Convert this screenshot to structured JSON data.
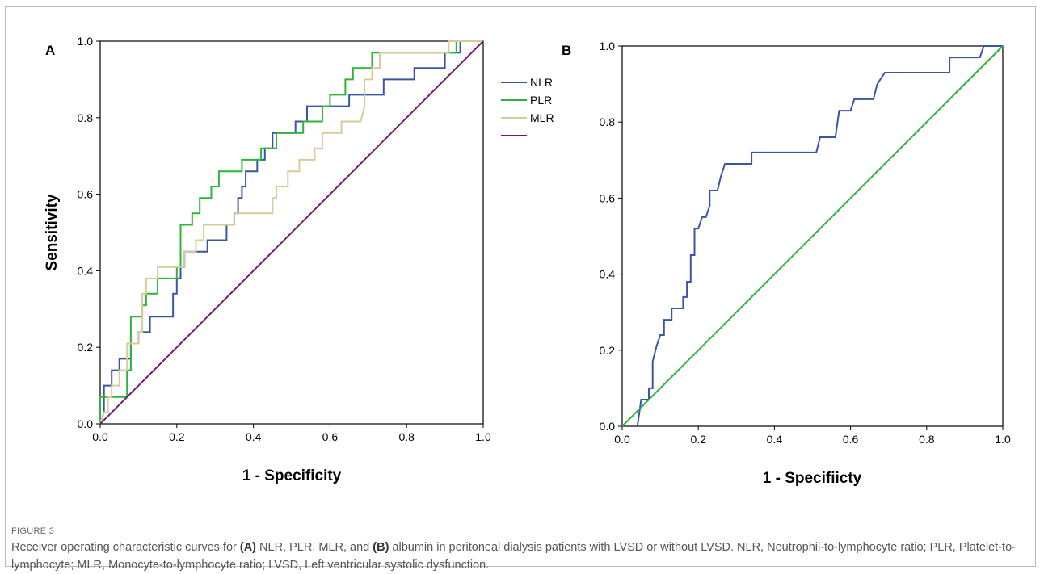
{
  "figure": {
    "label": "FIGURE 3",
    "caption": {
      "pre_a": "Receiver operating characteristic curves for ",
      "ref_a": "(A)",
      "mid": " NLR, PLR, MLR, and ",
      "ref_b": "(B)",
      "post": " albumin in peritoneal dialysis patients with LVSD or without LVSD. NLR, Neutrophil-to-lymphocyte ratio; PLR, Platelet-to-lymphocyte; MLR, Monocyte-to-lymphocyte ratio; LVSD, Left ventricular systolic dysfunction."
    }
  },
  "chart_data": [
    {
      "panel": "A",
      "type": "line",
      "xlabel": "1 - Specificity",
      "ylabel": "Sensitivity",
      "xlim": [
        0,
        1
      ],
      "ylim": [
        0,
        1
      ],
      "x_ticks": [
        "0.0",
        "0.2",
        "0.4",
        "0.6",
        "0.8",
        "1.0"
      ],
      "y_ticks": [
        "0.0",
        "0.2",
        "0.4",
        "0.6",
        "0.8",
        "1.0"
      ],
      "legend_position": "right",
      "series": [
        {
          "name": "NLR",
          "color": "#3b55a6",
          "points": [
            [
              0,
              0
            ],
            [
              0.01,
              0.03
            ],
            [
              0.01,
              0.1
            ],
            [
              0.03,
              0.1
            ],
            [
              0.03,
              0.14
            ],
            [
              0.05,
              0.14
            ],
            [
              0.05,
              0.17
            ],
            [
              0.08,
              0.17
            ],
            [
              0.08,
              0.21
            ],
            [
              0.1,
              0.21
            ],
            [
              0.1,
              0.24
            ],
            [
              0.13,
              0.24
            ],
            [
              0.13,
              0.28
            ],
            [
              0.19,
              0.28
            ],
            [
              0.19,
              0.34
            ],
            [
              0.2,
              0.34
            ],
            [
              0.2,
              0.38
            ],
            [
              0.21,
              0.38
            ],
            [
              0.21,
              0.41
            ],
            [
              0.22,
              0.41
            ],
            [
              0.22,
              0.45
            ],
            [
              0.28,
              0.45
            ],
            [
              0.28,
              0.48
            ],
            [
              0.33,
              0.48
            ],
            [
              0.33,
              0.52
            ],
            [
              0.35,
              0.52
            ],
            [
              0.35,
              0.55
            ],
            [
              0.36,
              0.55
            ],
            [
              0.36,
              0.59
            ],
            [
              0.37,
              0.59
            ],
            [
              0.37,
              0.62
            ],
            [
              0.38,
              0.62
            ],
            [
              0.38,
              0.66
            ],
            [
              0.41,
              0.66
            ],
            [
              0.41,
              0.69
            ],
            [
              0.43,
              0.69
            ],
            [
              0.43,
              0.72
            ],
            [
              0.45,
              0.72
            ],
            [
              0.45,
              0.76
            ],
            [
              0.51,
              0.76
            ],
            [
              0.51,
              0.79
            ],
            [
              0.54,
              0.79
            ],
            [
              0.54,
              0.83
            ],
            [
              0.65,
              0.83
            ],
            [
              0.65,
              0.86
            ],
            [
              0.74,
              0.86
            ],
            [
              0.74,
              0.9
            ],
            [
              0.82,
              0.9
            ],
            [
              0.82,
              0.93
            ],
            [
              0.9,
              0.93
            ],
            [
              0.9,
              0.97
            ],
            [
              0.94,
              0.97
            ],
            [
              0.94,
              1.0
            ],
            [
              1.0,
              1.0
            ]
          ]
        },
        {
          "name": "PLR",
          "color": "#2db43a",
          "points": [
            [
              0,
              0
            ],
            [
              0,
              0.07
            ],
            [
              0.07,
              0.07
            ],
            [
              0.07,
              0.14
            ],
            [
              0.08,
              0.14
            ],
            [
              0.08,
              0.28
            ],
            [
              0.11,
              0.28
            ],
            [
              0.11,
              0.31
            ],
            [
              0.12,
              0.31
            ],
            [
              0.12,
              0.34
            ],
            [
              0.15,
              0.34
            ],
            [
              0.15,
              0.38
            ],
            [
              0.2,
              0.38
            ],
            [
              0.2,
              0.41
            ],
            [
              0.21,
              0.41
            ],
            [
              0.21,
              0.52
            ],
            [
              0.24,
              0.52
            ],
            [
              0.24,
              0.55
            ],
            [
              0.26,
              0.55
            ],
            [
              0.26,
              0.59
            ],
            [
              0.29,
              0.59
            ],
            [
              0.29,
              0.62
            ],
            [
              0.31,
              0.62
            ],
            [
              0.31,
              0.66
            ],
            [
              0.37,
              0.66
            ],
            [
              0.37,
              0.69
            ],
            [
              0.42,
              0.69
            ],
            [
              0.42,
              0.72
            ],
            [
              0.46,
              0.72
            ],
            [
              0.46,
              0.76
            ],
            [
              0.53,
              0.76
            ],
            [
              0.53,
              0.79
            ],
            [
              0.58,
              0.79
            ],
            [
              0.58,
              0.83
            ],
            [
              0.6,
              0.83
            ],
            [
              0.6,
              0.86
            ],
            [
              0.64,
              0.86
            ],
            [
              0.64,
              0.9
            ],
            [
              0.66,
              0.9
            ],
            [
              0.66,
              0.93
            ],
            [
              0.71,
              0.93
            ],
            [
              0.71,
              0.97
            ],
            [
              0.93,
              0.97
            ],
            [
              0.93,
              1.0
            ],
            [
              1.0,
              1.0
            ]
          ]
        },
        {
          "name": "MLR",
          "color": "#d6cc9a",
          "points": [
            [
              0,
              0
            ],
            [
              0.01,
              0.03
            ],
            [
              0.02,
              0.03
            ],
            [
              0.02,
              0.07
            ],
            [
              0.03,
              0.07
            ],
            [
              0.03,
              0.1
            ],
            [
              0.05,
              0.1
            ],
            [
              0.05,
              0.14
            ],
            [
              0.07,
              0.14
            ],
            [
              0.07,
              0.21
            ],
            [
              0.1,
              0.21
            ],
            [
              0.1,
              0.24
            ],
            [
              0.11,
              0.24
            ],
            [
              0.11,
              0.34
            ],
            [
              0.12,
              0.34
            ],
            [
              0.12,
              0.38
            ],
            [
              0.15,
              0.38
            ],
            [
              0.15,
              0.41
            ],
            [
              0.22,
              0.41
            ],
            [
              0.22,
              0.45
            ],
            [
              0.25,
              0.45
            ],
            [
              0.25,
              0.48
            ],
            [
              0.27,
              0.48
            ],
            [
              0.27,
              0.52
            ],
            [
              0.35,
              0.52
            ],
            [
              0.35,
              0.55
            ],
            [
              0.45,
              0.55
            ],
            [
              0.45,
              0.59
            ],
            [
              0.46,
              0.59
            ],
            [
              0.46,
              0.62
            ],
            [
              0.49,
              0.62
            ],
            [
              0.49,
              0.66
            ],
            [
              0.52,
              0.66
            ],
            [
              0.52,
              0.69
            ],
            [
              0.56,
              0.69
            ],
            [
              0.56,
              0.72
            ],
            [
              0.58,
              0.72
            ],
            [
              0.58,
              0.76
            ],
            [
              0.63,
              0.76
            ],
            [
              0.63,
              0.79
            ],
            [
              0.68,
              0.79
            ],
            [
              0.69,
              0.83
            ],
            [
              0.69,
              0.9
            ],
            [
              0.71,
              0.9
            ],
            [
              0.71,
              0.93
            ],
            [
              0.73,
              0.93
            ],
            [
              0.73,
              0.97
            ],
            [
              0.91,
              0.97
            ],
            [
              0.91,
              1.0
            ],
            [
              1.0,
              1.0
            ]
          ]
        },
        {
          "name": "",
          "color": "#6b1f72",
          "points": [
            [
              0,
              0
            ],
            [
              1,
              1
            ]
          ]
        }
      ]
    },
    {
      "panel": "B",
      "type": "line",
      "xlabel": "1 - Specifiicty",
      "ylabel": "",
      "xlim": [
        0,
        1
      ],
      "ylim": [
        0,
        1
      ],
      "x_ticks": [
        "0.0",
        "0.2",
        "0.4",
        "0.6",
        "0.8",
        "1.0"
      ],
      "y_ticks": [
        "0.0",
        "0.2",
        "0.4",
        "0.6",
        "0.8",
        "1.0"
      ],
      "series": [
        {
          "name": "",
          "color": "#3b55a6",
          "points": [
            [
              0.04,
              0
            ],
            [
              0.05,
              0.07
            ],
            [
              0.06,
              0.07
            ],
            [
              0.07,
              0.07
            ],
            [
              0.07,
              0.1
            ],
            [
              0.08,
              0.1
            ],
            [
              0.08,
              0.17
            ],
            [
              0.09,
              0.21
            ],
            [
              0.1,
              0.24
            ],
            [
              0.11,
              0.24
            ],
            [
              0.11,
              0.28
            ],
            [
              0.13,
              0.28
            ],
            [
              0.13,
              0.31
            ],
            [
              0.16,
              0.31
            ],
            [
              0.16,
              0.34
            ],
            [
              0.17,
              0.34
            ],
            [
              0.17,
              0.38
            ],
            [
              0.18,
              0.38
            ],
            [
              0.18,
              0.45
            ],
            [
              0.19,
              0.45
            ],
            [
              0.19,
              0.52
            ],
            [
              0.2,
              0.52
            ],
            [
              0.21,
              0.55
            ],
            [
              0.22,
              0.55
            ],
            [
              0.23,
              0.58
            ],
            [
              0.23,
              0.62
            ],
            [
              0.24,
              0.62
            ],
            [
              0.25,
              0.62
            ],
            [
              0.26,
              0.66
            ],
            [
              0.27,
              0.69
            ],
            [
              0.3,
              0.69
            ],
            [
              0.34,
              0.69
            ],
            [
              0.34,
              0.72
            ],
            [
              0.51,
              0.72
            ],
            [
              0.52,
              0.76
            ],
            [
              0.56,
              0.76
            ],
            [
              0.57,
              0.83
            ],
            [
              0.6,
              0.83
            ],
            [
              0.61,
              0.86
            ],
            [
              0.66,
              0.86
            ],
            [
              0.67,
              0.9
            ],
            [
              0.69,
              0.93
            ],
            [
              0.86,
              0.93
            ],
            [
              0.86,
              0.97
            ],
            [
              0.94,
              0.97
            ],
            [
              0.95,
              1.0
            ],
            [
              1.0,
              1.0
            ]
          ]
        },
        {
          "name": "",
          "color": "#2db43a",
          "points": [
            [
              0,
              0
            ],
            [
              1,
              1
            ]
          ]
        }
      ]
    }
  ]
}
